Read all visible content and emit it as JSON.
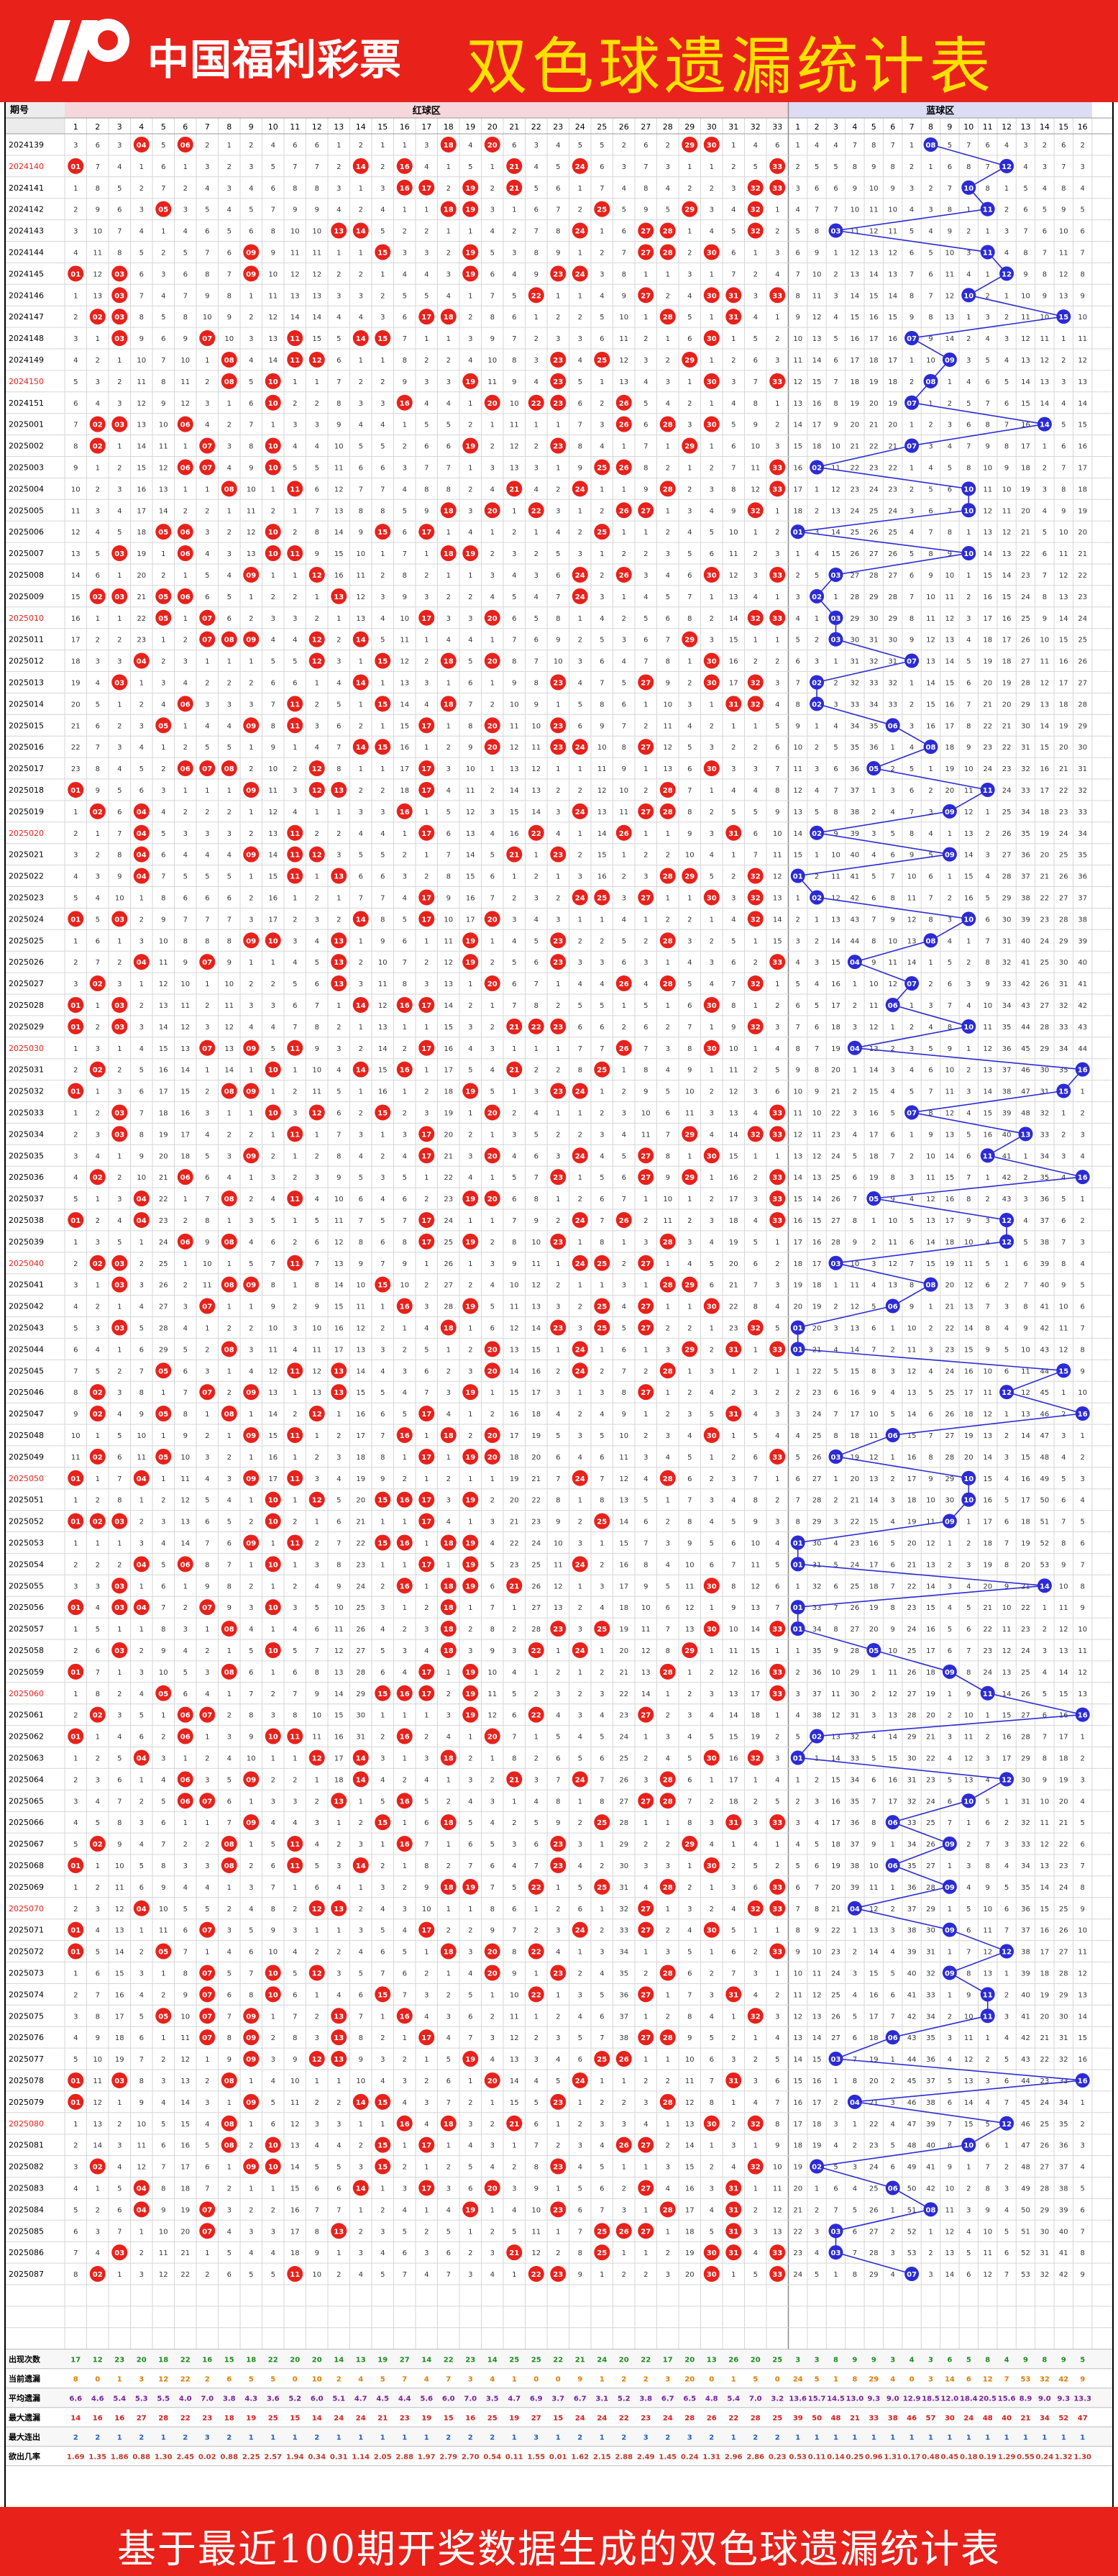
{
  "header": {
    "logo_text": "中国福利彩票",
    "title": "双色球遗漏统计表"
  },
  "table": {
    "col_period": "期号",
    "red_zone": "红球区",
    "blue_zone": "蓝球区",
    "red_count": 33,
    "blue_count": 16,
    "highlight_periods": [
      "2024140",
      "2024150",
      "2025010",
      "2025020",
      "2025030",
      "2025040",
      "2025050",
      "2025060",
      "2025070",
      "2025080"
    ],
    "period_groups": [
      {
        "year": "2024",
        "from": 139,
        "to": 151
      },
      {
        "year": "2025",
        "from": 1,
        "to": 87
      }
    ],
    "stats_rows": [
      {
        "label": "出现次数",
        "color": "#1b8c1b"
      },
      {
        "label": "当前遗漏",
        "color": "#e07b00"
      },
      {
        "label": "平均遗漏",
        "color": "#7a1fa2"
      },
      {
        "label": "最大遗漏",
        "color": "#d81b1b"
      },
      {
        "label": "最大连出",
        "color": "#1f5fbf"
      },
      {
        "label": "欲出几率",
        "color": "#c0382b"
      }
    ],
    "colors": {
      "red_ball": "#e8211b",
      "blue_ball": "#2b2bd6",
      "red_header_bg": "#f6d7dc",
      "blue_header_bg": "#dcdcf4",
      "grid_line": "#d6d6d6"
    }
  },
  "footer": {
    "text": "基于最近100期开奖数据生成的双色球遗漏统计表"
  }
}
